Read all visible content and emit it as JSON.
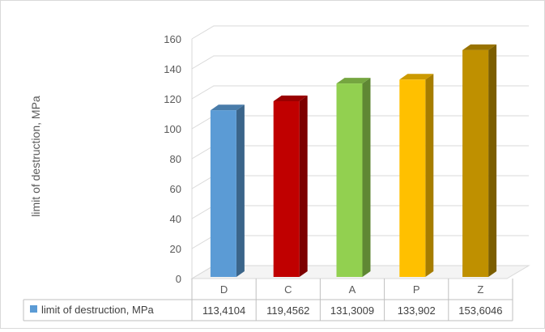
{
  "chart_data": {
    "type": "bar",
    "ylabel": "limit of destruction, MPa",
    "ylim": [
      0,
      160
    ],
    "y_ticks": [
      "0",
      "20",
      "40",
      "60",
      "80",
      "100",
      "120",
      "140",
      "160"
    ],
    "categories": [
      "D",
      "C",
      "A",
      "P",
      "Z"
    ],
    "series": [
      {
        "name": "limit of destruction, MPa",
        "values": [
          113.4104,
          119.4562,
          131.3009,
          133.902,
          153.6046
        ],
        "value_labels": [
          "113,4104",
          "119,4562",
          "131,3009",
          "133,902",
          "153,6046"
        ]
      }
    ],
    "bar_colors": [
      "#5b9bd5",
      "#c00000",
      "#92d050",
      "#ffc000",
      "#bf9000"
    ],
    "legend_marker_color": "#5b9bd5",
    "data_table": true,
    "grid": true,
    "style": "3d-column"
  }
}
